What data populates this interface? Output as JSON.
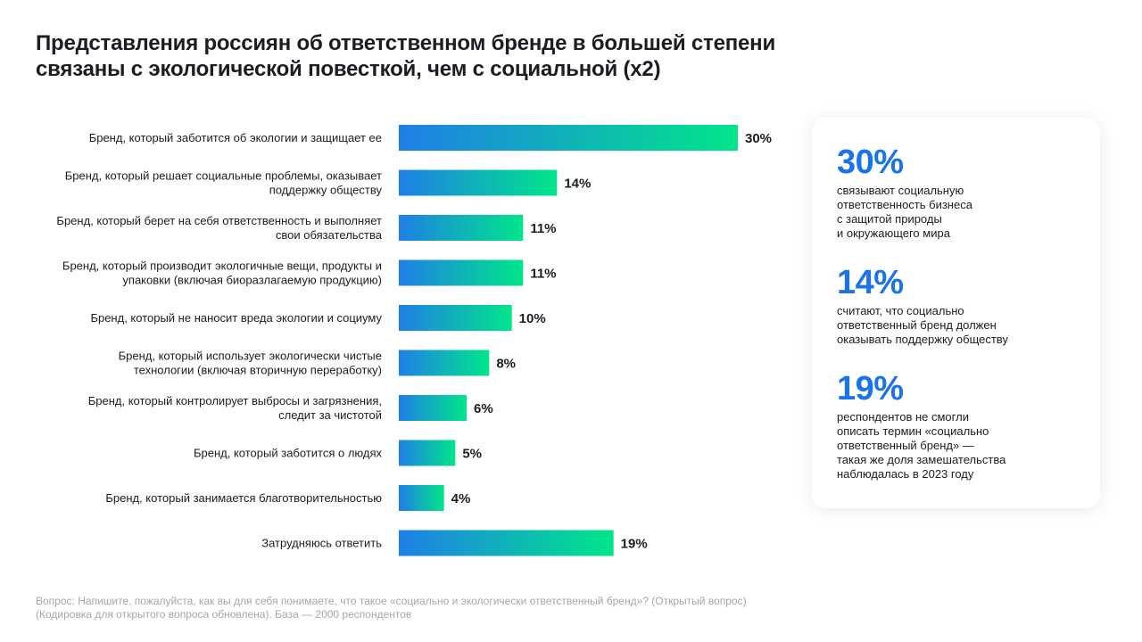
{
  "title": {
    "line1": "Представления россиян об ответственном бренде в большей степени",
    "line2": "связаны с экологической повесткой, чем с социальной (х2)"
  },
  "chart_data": {
    "type": "bar",
    "orientation": "horizontal",
    "categories": [
      [
        "Бренд, который заботится об экологии и защищает ее"
      ],
      [
        "Бренд, который решает социальные проблемы, оказывает",
        "поддержку обществу"
      ],
      [
        "Бренд, который берет на себя ответственность и выполняет",
        "свои обязательства"
      ],
      [
        "Бренд, который производит экологичные вещи, продукты и",
        "упаковки (включая биоразлагаемую продукцию)"
      ],
      [
        "Бренд, который не наносит вреда экологии и социуму"
      ],
      [
        "Бренд, который использует экологически чистые",
        "технологии (включая вторичную переработку)"
      ],
      [
        "Бренд, который контролирует выбросы и загрязнения,",
        "следит за чистотой"
      ],
      [
        "Бренд, который заботится о людях"
      ],
      [
        "Бренд, который занимается благотворительностью"
      ],
      [
        "Затрудняюсь ответить"
      ]
    ],
    "values": [
      30,
      14,
      11,
      11,
      10,
      8,
      6,
      5,
      4,
      19
    ],
    "value_suffix": "%",
    "xlim": [
      0,
      30
    ],
    "grid": false,
    "bar_gradient": [
      "#1f7fe6",
      "#00e68a"
    ]
  },
  "stats": [
    {
      "number": "30%",
      "lines": [
        "связывают социальную",
        "ответственность бизнеса",
        "с защитой природы",
        "и окружающего мира"
      ]
    },
    {
      "number": "14%",
      "lines": [
        "считают, что социально",
        "ответственный бренд должен",
        "оказывать поддержку обществу"
      ]
    },
    {
      "number": "19%",
      "lines": [
        "респондентов не смогли",
        "описать термин «социально",
        "ответственный бренд» —",
        "такая же доля замешательства",
        "наблюдалась в 2023 году"
      ]
    }
  ],
  "footnote": {
    "line1": "Вопрос: Напишите, пожалуйста, как вы для себя понимаете, что такое «социально и экологически ответственный бренд»? (Открытый вопрос)",
    "line2": "(Кодировка для открытого вопроса обновлена). База — 2000 респондентов"
  },
  "colors": {
    "accent": "#1a73e8",
    "bar_start": "#1f7fe6",
    "bar_end": "#00e68a",
    "footnote": "#a3a7b0"
  }
}
